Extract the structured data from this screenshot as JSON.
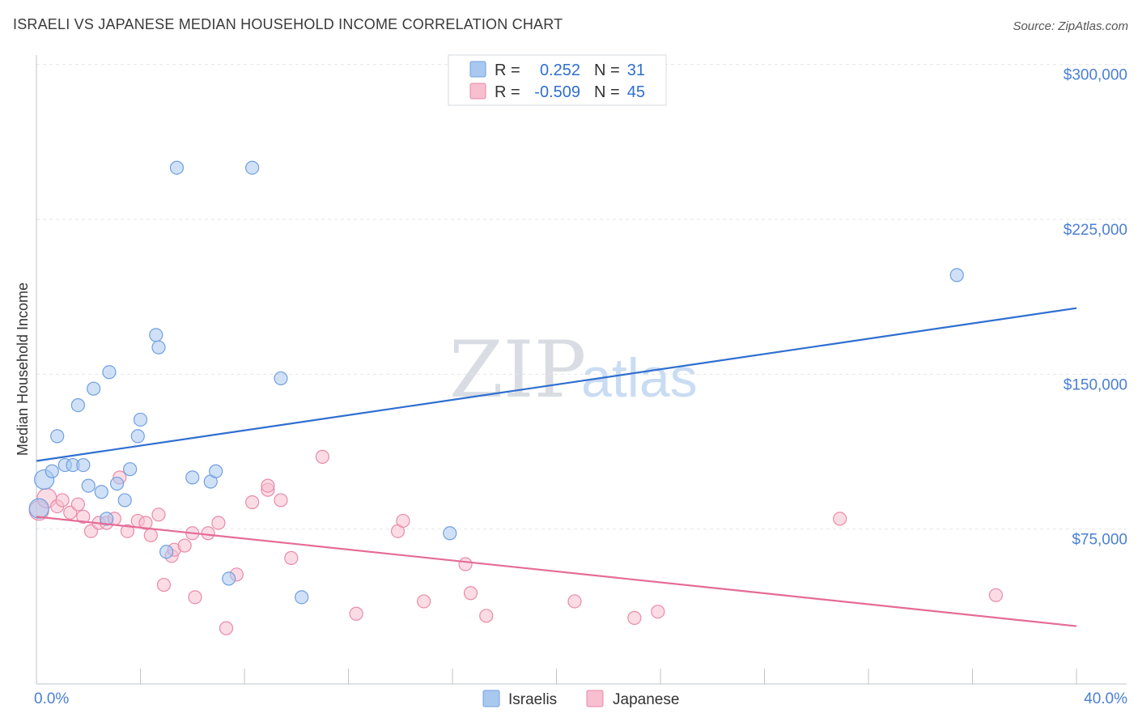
{
  "title": "ISRAELI VS JAPANESE MEDIAN HOUSEHOLD INCOME CORRELATION CHART",
  "source": "Source: ZipAtlas.com",
  "watermark": {
    "zip": "ZIP",
    "atlas": "atlas"
  },
  "legend": {
    "rows": [
      {
        "r_label": "R =",
        "r_value": "0.252",
        "n_label": "N =",
        "n_value": "31",
        "color": "#a9c8f0",
        "stroke": "#6f9fe0"
      },
      {
        "r_label": "R =",
        "r_value": "-0.509",
        "n_label": "N =",
        "n_value": "45",
        "color": "#f7bfd0",
        "stroke": "#e98aa8"
      }
    ]
  },
  "bottom_legend": [
    {
      "label": "Israelis",
      "color": "#a9c8f0",
      "stroke": "#6f9fe0"
    },
    {
      "label": "Japanese",
      "color": "#f7bfd0",
      "stroke": "#e98aa8"
    }
  ],
  "chart_data": {
    "type": "scatter",
    "title": "ISRAELI VS JAPANESE MEDIAN HOUSEHOLD INCOME CORRELATION CHART",
    "xlabel": "",
    "ylabel": "Median Household Income",
    "xlim": [
      0,
      40
    ],
    "ylim": [
      0,
      310000
    ],
    "x_tick_labels": [
      "0.0%",
      "40.0%"
    ],
    "y_ticks": [
      {
        "value": 75000,
        "label": "$75,000"
      },
      {
        "value": 150000,
        "label": "$150,000"
      },
      {
        "value": 225000,
        "label": "$225,000"
      },
      {
        "value": 300000,
        "label": "$300,000"
      }
    ],
    "grid": true,
    "legend_position": "top-center",
    "series": [
      {
        "name": "Israelis",
        "color": "#a9c8f0",
        "stroke": "#6f9fe0",
        "line_color": "#2f6fd0",
        "trend": {
          "x": [
            0,
            40
          ],
          "y": [
            108000,
            182000
          ]
        },
        "points": [
          {
            "x": 0.1,
            "y": 85000
          },
          {
            "x": 0.3,
            "y": 99000
          },
          {
            "x": 0.6,
            "y": 103000
          },
          {
            "x": 0.8,
            "y": 120000
          },
          {
            "x": 1.1,
            "y": 106000
          },
          {
            "x": 1.4,
            "y": 106000
          },
          {
            "x": 1.6,
            "y": 135000
          },
          {
            "x": 1.8,
            "y": 106000
          },
          {
            "x": 2.0,
            "y": 96000
          },
          {
            "x": 2.2,
            "y": 143000
          },
          {
            "x": 2.5,
            "y": 93000
          },
          {
            "x": 2.8,
            "y": 151000
          },
          {
            "x": 2.7,
            "y": 80000
          },
          {
            "x": 3.1,
            "y": 97000
          },
          {
            "x": 3.4,
            "y": 89000
          },
          {
            "x": 3.6,
            "y": 104000
          },
          {
            "x": 3.9,
            "y": 120000
          },
          {
            "x": 4.0,
            "y": 128000
          },
          {
            "x": 4.6,
            "y": 169000
          },
          {
            "x": 4.7,
            "y": 163000
          },
          {
            "x": 5.0,
            "y": 64000
          },
          {
            "x": 5.4,
            "y": 250000
          },
          {
            "x": 6.0,
            "y": 100000
          },
          {
            "x": 6.7,
            "y": 98000
          },
          {
            "x": 6.9,
            "y": 103000
          },
          {
            "x": 7.4,
            "y": 51000
          },
          {
            "x": 8.3,
            "y": 250000
          },
          {
            "x": 9.4,
            "y": 148000
          },
          {
            "x": 10.2,
            "y": 42000
          },
          {
            "x": 15.9,
            "y": 73000
          },
          {
            "x": 35.4,
            "y": 198000
          }
        ]
      },
      {
        "name": "Japanese",
        "color": "#f7bfd0",
        "stroke": "#e98aa8",
        "line_color": "#e56b96",
        "trend": {
          "x": [
            0,
            40
          ],
          "y": [
            81000,
            28000
          ]
        },
        "points": [
          {
            "x": 0.1,
            "y": 84000
          },
          {
            "x": 0.4,
            "y": 90000
          },
          {
            "x": 0.8,
            "y": 86000
          },
          {
            "x": 1.0,
            "y": 89000
          },
          {
            "x": 1.3,
            "y": 83000
          },
          {
            "x": 1.6,
            "y": 87000
          },
          {
            "x": 1.8,
            "y": 81000
          },
          {
            "x": 2.1,
            "y": 74000
          },
          {
            "x": 2.4,
            "y": 78000
          },
          {
            "x": 2.7,
            "y": 78000
          },
          {
            "x": 3.0,
            "y": 80000
          },
          {
            "x": 3.2,
            "y": 100000
          },
          {
            "x": 3.5,
            "y": 74000
          },
          {
            "x": 3.9,
            "y": 79000
          },
          {
            "x": 4.2,
            "y": 78000
          },
          {
            "x": 4.4,
            "y": 72000
          },
          {
            "x": 4.7,
            "y": 82000
          },
          {
            "x": 4.9,
            "y": 48000
          },
          {
            "x": 5.2,
            "y": 62000
          },
          {
            "x": 5.3,
            "y": 65000
          },
          {
            "x": 5.7,
            "y": 67000
          },
          {
            "x": 6.0,
            "y": 73000
          },
          {
            "x": 6.1,
            "y": 42000
          },
          {
            "x": 6.6,
            "y": 73000
          },
          {
            "x": 7.0,
            "y": 78000
          },
          {
            "x": 7.3,
            "y": 27000
          },
          {
            "x": 7.7,
            "y": 53000
          },
          {
            "x": 8.3,
            "y": 88000
          },
          {
            "x": 8.9,
            "y": 94000
          },
          {
            "x": 8.9,
            "y": 96000
          },
          {
            "x": 9.4,
            "y": 89000
          },
          {
            "x": 9.8,
            "y": 61000
          },
          {
            "x": 11.0,
            "y": 110000
          },
          {
            "x": 12.3,
            "y": 34000
          },
          {
            "x": 13.9,
            "y": 74000
          },
          {
            "x": 14.1,
            "y": 79000
          },
          {
            "x": 14.9,
            "y": 40000
          },
          {
            "x": 16.5,
            "y": 58000
          },
          {
            "x": 16.7,
            "y": 44000
          },
          {
            "x": 17.3,
            "y": 33000
          },
          {
            "x": 20.7,
            "y": 40000
          },
          {
            "x": 23.0,
            "y": 32000
          },
          {
            "x": 23.9,
            "y": 35000
          },
          {
            "x": 30.9,
            "y": 80000
          },
          {
            "x": 36.9,
            "y": 43000
          }
        ]
      }
    ]
  }
}
